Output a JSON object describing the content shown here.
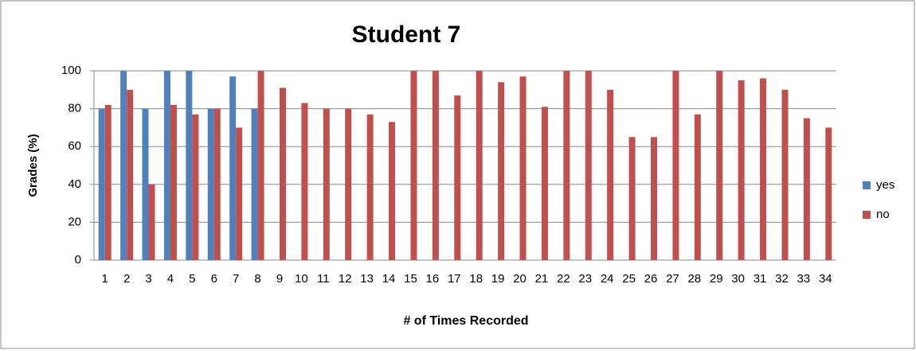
{
  "chart_data": {
    "type": "bar",
    "title": "Student 7",
    "x_label": "# of Times Recorded",
    "y_label": "Grades (%)",
    "categories": [
      "1",
      "2",
      "3",
      "4",
      "5",
      "6",
      "7",
      "8",
      "9",
      "10",
      "11",
      "12",
      "13",
      "14",
      "15",
      "16",
      "17",
      "18",
      "19",
      "20",
      "21",
      "22",
      "23",
      "24",
      "25",
      "26",
      "27",
      "28",
      "29",
      "30",
      "31",
      "32",
      "33",
      "34"
    ],
    "series": [
      {
        "name": "yes",
        "color": "#4f81bd",
        "values": [
          80,
          100,
          80,
          100,
          100,
          80,
          97,
          80,
          null,
          null,
          null,
          null,
          null,
          null,
          null,
          null,
          null,
          null,
          null,
          null,
          null,
          null,
          null,
          null,
          null,
          null,
          null,
          null,
          null,
          null,
          null,
          null,
          null,
          null
        ]
      },
      {
        "name": "no",
        "color": "#c0504d",
        "values": [
          82,
          90,
          40,
          82,
          77,
          80,
          70,
          100,
          91,
          83,
          80,
          80,
          77,
          73,
          100,
          100,
          87,
          100,
          94,
          97,
          81,
          100,
          100,
          90,
          65,
          65,
          100,
          77,
          100,
          95,
          96,
          90,
          75,
          70
        ]
      }
    ],
    "ylim": [
      0,
      100
    ],
    "yticks": [
      0,
      20,
      40,
      60,
      80,
      100
    ],
    "grid": true,
    "legend": "right"
  }
}
